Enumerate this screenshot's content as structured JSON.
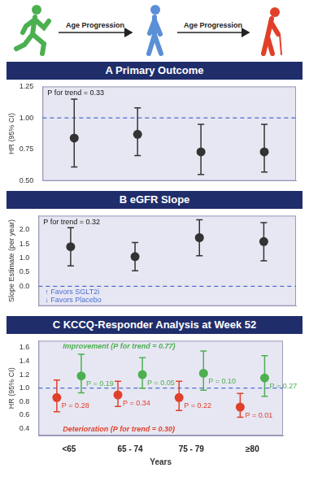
{
  "header": {
    "arrow_labels": [
      "Age Progression",
      "Age Progression"
    ]
  },
  "chart_data": [
    {
      "panel": "A",
      "title": "Primary Outcome",
      "type": "scatter",
      "marker": "circle",
      "categories": [
        "<65",
        "65 - 74",
        "75 - 79",
        "≥80"
      ],
      "y_label": "HR (95% CI)",
      "ylim": [
        0.5,
        1.25
      ],
      "yticks": [
        {
          "value": 0.5,
          "label": "0.50"
        },
        {
          "value": 0.75,
          "label": "0.75"
        },
        {
          "value": 1,
          "label": "1.00"
        },
        {
          "value": 1.25,
          "label": "1.25"
        }
      ],
      "reference_line": 1,
      "grid": false,
      "tick_labels": "y",
      "annotations": [
        "P for trend = 0.33"
      ],
      "series": [
        {
          "color": "#333333",
          "values": [
            0.84,
            0.87,
            0.73,
            0.73
          ],
          "ci_low": [
            0.61,
            0.7,
            0.55,
            0.57
          ],
          "ci_high": [
            1.15,
            1.08,
            0.95,
            0.95
          ]
        }
      ]
    },
    {
      "panel": "B",
      "title": "eGFR Slope",
      "type": "scatter",
      "marker": "circle",
      "categories": [
        "<65",
        "65 - 74",
        "75 - 79",
        "≥80"
      ],
      "y_label": "Slope Estimate (per year)",
      "ylim": [
        -0.7,
        2.5
      ],
      "yticks": [
        {
          "value": 0,
          "label": "0.0"
        },
        0.5,
        {
          "value": 1,
          "label": "1.0"
        },
        1.5,
        {
          "value": 2,
          "label": "2.0"
        }
      ],
      "reference_line": 0,
      "grid": false,
      "tick_labels": "y",
      "annotations": [
        "P for trend = 0.32"
      ],
      "direction_labels": [
        "↑ Favors SGLT2i",
        "↓ Favors Placebo"
      ],
      "series": [
        {
          "color": "#333333",
          "values": [
            1.4,
            1.05,
            1.72,
            1.58
          ],
          "ci_low": [
            0.72,
            0.55,
            1.08,
            0.9
          ],
          "ci_high": [
            2.07,
            1.55,
            2.35,
            2.25
          ]
        }
      ]
    },
    {
      "panel": "C",
      "title": "KCCQ-Responder Analysis at Week 52",
      "type": "scatter",
      "marker": "circle",
      "categories": [
        "<65",
        "65 - 74",
        "75 - 79",
        "≥80"
      ],
      "x_label": "Years",
      "y_label": "HR (95% CI)",
      "ylim": [
        0.3,
        1.7
      ],
      "yticks": [
        0.4,
        0.6,
        0.8,
        {
          "value": 1,
          "label": "1.0"
        },
        1.2,
        1.4,
        1.6
      ],
      "reference_line": 1,
      "grid": false,
      "tick_labels": true,
      "series": [
        {
          "name": "Deterioration",
          "annotation": "(P for trend = 0.30)",
          "color": "#e0402a",
          "values": [
            0.86,
            0.9,
            0.86,
            0.72
          ],
          "ci_low": [
            0.65,
            0.73,
            0.67,
            0.57
          ],
          "ci_high": [
            1.12,
            1.1,
            1.1,
            0.92
          ],
          "p_labels": [
            "P = 0.28",
            "P = 0.34",
            "P = 0.22",
            "P = 0.01"
          ]
        },
        {
          "name": "Improvement",
          "annotation": "(P for trend = 0.77)",
          "color": "#4caf50",
          "values": [
            1.18,
            1.2,
            1.22,
            1.15
          ],
          "ci_low": [
            0.93,
            1.0,
            0.97,
            0.88
          ],
          "ci_high": [
            1.5,
            1.45,
            1.55,
            1.48
          ],
          "p_labels": [
            "P = 0.19",
            "P = 0.05",
            "P = 0.10",
            "P = 0.27"
          ]
        }
      ]
    }
  ]
}
